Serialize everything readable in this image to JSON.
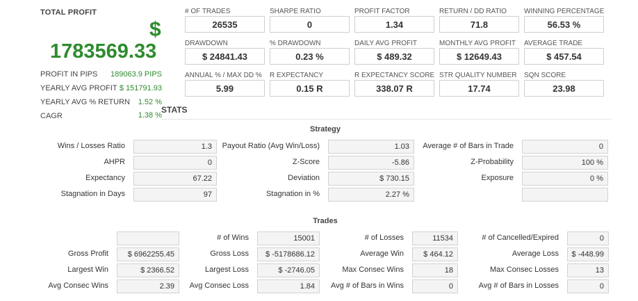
{
  "total_profit": {
    "title": "TOTAL PROFIT",
    "currency_symbol": "$",
    "value": "1783569.33",
    "rows": [
      {
        "label": "PROFIT IN PIPS",
        "value": "189063.9 PIPS"
      },
      {
        "label": "YEARLY AVG PROFIT",
        "value": "$ 151791.93"
      },
      {
        "label": "YEARLY AVG % RETURN",
        "value": "1.52 %"
      },
      {
        "label": "CAGR",
        "value": "1.38 %"
      }
    ]
  },
  "metrics": [
    [
      {
        "label": "# OF TRADES",
        "value": "26535"
      },
      {
        "label": "SHARPE RATIO",
        "value": "0"
      },
      {
        "label": "PROFIT FACTOR",
        "value": "1.34"
      },
      {
        "label": "RETURN / DD RATIO",
        "value": "71.8"
      },
      {
        "label": "WINNING PERCENTAGE",
        "value": "56.53 %"
      }
    ],
    [
      {
        "label": "DRAWDOWN",
        "value": "$ 24841.43"
      },
      {
        "label": "% DRAWDOWN",
        "value": "0.23 %"
      },
      {
        "label": "DAILY AVG PROFIT",
        "value": "$ 489.32"
      },
      {
        "label": "MONTHLY AVG PROFIT",
        "value": "$ 12649.43"
      },
      {
        "label": "AVERAGE TRADE",
        "value": "$ 457.54"
      }
    ],
    [
      {
        "label": "ANNUAL % / MAX DD %",
        "value": "5.99"
      },
      {
        "label": "R EXPECTANCY",
        "value": "0.15 R"
      },
      {
        "label": "R EXPECTANCY SCORE",
        "value": "338.07 R"
      },
      {
        "label": "STR QUALITY NUMBER",
        "value": "17.74"
      },
      {
        "label": "SQN SCORE",
        "value": "23.98"
      }
    ]
  ],
  "stats_title": "STATS",
  "strategy": {
    "title": "Strategy",
    "rows": [
      [
        {
          "label": "Wins / Losses Ratio",
          "value": "1.3"
        },
        {
          "label": "Payout Ratio (Avg Win/Loss)",
          "value": "1.03"
        },
        {
          "label": "Average # of Bars in Trade",
          "value": "0"
        }
      ],
      [
        {
          "label": "AHPR",
          "value": "0"
        },
        {
          "label": "Z-Score",
          "value": "-5.86"
        },
        {
          "label": "Z-Probability",
          "value": "100 %"
        }
      ],
      [
        {
          "label": "Expectancy",
          "value": "67.22"
        },
        {
          "label": "Deviation",
          "value": "$ 730.15"
        },
        {
          "label": "Exposure",
          "value": "0 %"
        }
      ],
      [
        {
          "label": "Stagnation in Days",
          "value": "97"
        },
        {
          "label": "Stagnation in %",
          "value": "2.27 %"
        },
        {
          "label": "",
          "value": ""
        }
      ]
    ]
  },
  "trades": {
    "title": "Trades",
    "rows": [
      [
        {
          "label": "",
          "value": ""
        },
        {
          "label": "# of Wins",
          "value": "15001"
        },
        {
          "label": "# of Losses",
          "value": "11534"
        },
        {
          "label": "# of Cancelled/Expired",
          "value": "0"
        }
      ],
      [
        {
          "label": "Gross Profit",
          "value": "$ 6962255.45"
        },
        {
          "label": "Gross Loss",
          "value": "$ -5178686.12"
        },
        {
          "label": "Average Win",
          "value": "$ 464.12"
        },
        {
          "label": "Average Loss",
          "value": "$ -448.99"
        }
      ],
      [
        {
          "label": "Largest Win",
          "value": "$ 2366.52"
        },
        {
          "label": "Largest Loss",
          "value": "$ -2746.05"
        },
        {
          "label": "Max Consec Wins",
          "value": "18"
        },
        {
          "label": "Max Consec Losses",
          "value": "13"
        }
      ],
      [
        {
          "label": "Avg Consec Wins",
          "value": "2.39"
        },
        {
          "label": "Avg Consec Loss",
          "value": "1.84"
        },
        {
          "label": "Avg # of Bars in Wins",
          "value": "0"
        },
        {
          "label": "Avg # of Bars in Losses",
          "value": "0"
        }
      ]
    ]
  }
}
